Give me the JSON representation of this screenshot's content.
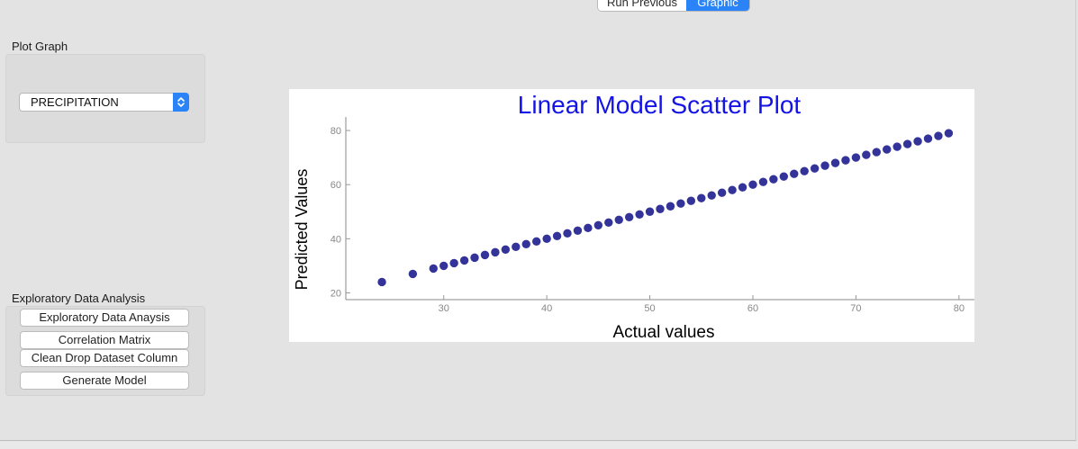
{
  "toolbar": {
    "run_previous_label": "Run Previous",
    "graphic_label": "Graphic"
  },
  "plot_graph": {
    "title": "Plot Graph",
    "selected_variable": "PRECIPITATION"
  },
  "eda": {
    "title": "Exploratory Data Analysis",
    "buttons": [
      "Exploratory Data Anaysis",
      "Correlation Matrix",
      "Clean Drop Dataset Column",
      "Generate Model"
    ]
  },
  "colors": {
    "accent": "#2a84f7",
    "chart_title": "#1414e6",
    "marker": "#333399"
  },
  "chart_data": {
    "type": "scatter",
    "title": "Linear Model Scatter Plot",
    "xlabel": "Actual values",
    "ylabel": "Predicted Values",
    "xlim": [
      20.5,
      81.5
    ],
    "ylim": [
      17.5,
      85
    ],
    "xticks": [
      30,
      40,
      50,
      60,
      70,
      80
    ],
    "yticks": [
      20,
      40,
      60,
      80
    ],
    "grid": false,
    "x": [
      24,
      27,
      29,
      30,
      31,
      32,
      33,
      34,
      35,
      36,
      37,
      38,
      39,
      40,
      41,
      42,
      43,
      44,
      45,
      46,
      47,
      48,
      49,
      50,
      51,
      52,
      53,
      54,
      55,
      56,
      57,
      58,
      59,
      60,
      61,
      62,
      63,
      64,
      65,
      66,
      67,
      68,
      69,
      70,
      71,
      72,
      73,
      74,
      75,
      76,
      77,
      78,
      79
    ],
    "y": [
      24,
      27,
      29,
      30,
      31,
      32,
      33,
      34,
      35,
      36,
      37,
      38,
      39,
      40,
      41,
      42,
      43,
      44,
      45,
      46,
      47,
      48,
      49,
      50,
      51,
      52,
      53,
      54,
      55,
      56,
      57,
      58,
      59,
      60,
      61,
      62,
      63,
      64,
      65,
      66,
      67,
      68,
      69,
      70,
      71,
      72,
      73,
      74,
      75,
      76,
      77,
      78,
      79
    ]
  }
}
